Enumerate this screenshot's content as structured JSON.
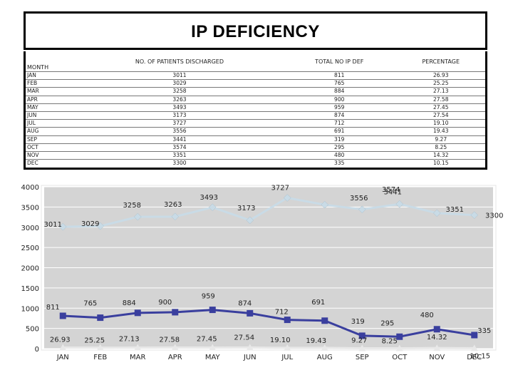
{
  "title": "IP DEFICIENCY",
  "table": {
    "headers": [
      "MONTH",
      "NO. OF PATIENTS DISCHARGED",
      "TOTAL NO IP DEF",
      "PERCENTAGE"
    ],
    "rows": [
      [
        "JAN",
        "3011",
        "811",
        "26.93"
      ],
      [
        "FEB",
        "3029",
        "765",
        "25.25"
      ],
      [
        "MAR",
        "3258",
        "884",
        "27.13"
      ],
      [
        "APR",
        "3263",
        "900",
        "27.58"
      ],
      [
        "MAY",
        "3493",
        "959",
        "27.45"
      ],
      [
        "JUN",
        "3173",
        "874",
        "27.54"
      ],
      [
        "JUL",
        "3727",
        "712",
        "19.10"
      ],
      [
        "AUG",
        "3556",
        "691",
        "19.43"
      ],
      [
        "SEP",
        "3441",
        "319",
        "9.27"
      ],
      [
        "OCT",
        "3574",
        "295",
        "8.25"
      ],
      [
        "NOV",
        "3351",
        "480",
        "14.32"
      ],
      [
        "DEC",
        "3300",
        "335",
        "10.15"
      ]
    ]
  },
  "chart_data": {
    "type": "line",
    "categories": [
      "JAN",
      "FEB",
      "MAR",
      "APR",
      "MAY",
      "JUN",
      "JUL",
      "AUG",
      "SEP",
      "OCT",
      "NOV",
      "DEC"
    ],
    "yticks": [
      0,
      500,
      1000,
      1500,
      2000,
      2500,
      3000,
      3500,
      4000
    ],
    "ylim": [
      0,
      4000
    ],
    "series": [
      {
        "name": "NO. OF PATIENTS DISCHARGED",
        "color": "#c9dbe6",
        "marker": "diamond",
        "values": [
          3011,
          3029,
          3258,
          3263,
          3493,
          3173,
          3727,
          3556,
          3441,
          3574,
          3351,
          3300
        ],
        "labels": [
          "3011",
          "3029",
          "3258",
          "3263",
          "3493",
          "3173",
          "3727",
          "3556",
          "3441",
          "3574",
          "3351",
          "3300"
        ]
      },
      {
        "name": "TOTAL NO IP DEF",
        "color": "#3a3f9e",
        "marker": "square",
        "values": [
          811,
          765,
          884,
          900,
          959,
          874,
          712,
          691,
          319,
          295,
          480,
          335
        ],
        "labels": [
          "811",
          "765",
          "884",
          "900",
          "959",
          "874",
          "712",
          "691",
          "319",
          "295",
          "480",
          "335"
        ]
      },
      {
        "name": "PERCENTAGE",
        "color": "#e8e8e8",
        "marker": "triangle",
        "values": [
          26.93,
          25.25,
          27.13,
          27.58,
          27.45,
          27.54,
          19.1,
          19.43,
          9.27,
          8.25,
          14.32,
          10.15
        ],
        "labels": [
          "26.93",
          "25.25",
          "27.13",
          "27.58",
          "27.45",
          "27.54",
          "19.10",
          "19.43",
          "9.27",
          "8.25",
          "14.32",
          "10.15"
        ]
      }
    ],
    "colors": {
      "plot_background": "#d4d4d4",
      "grid": "#ffffff"
    }
  }
}
